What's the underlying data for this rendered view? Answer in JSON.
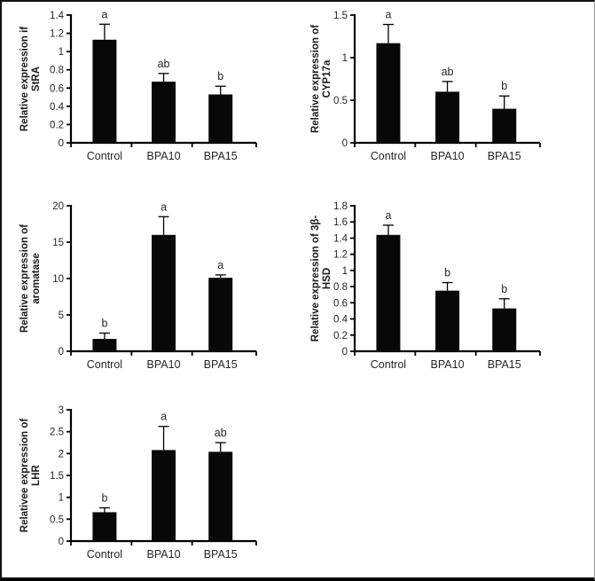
{
  "figure": {
    "background": "#ffffff",
    "border_color": "#000000",
    "text_color": "#262626",
    "bar_color": "#080808",
    "groups": [
      "Control",
      "BPA10",
      "BPA15"
    ]
  },
  "chart_data": [
    {
      "id": "stra",
      "type": "bar",
      "ylabel_lines": [
        "Relative expression if",
        "StRA"
      ],
      "categories": [
        "Control",
        "BPA10",
        "BPA15"
      ],
      "values": [
        1.13,
        0.67,
        0.53
      ],
      "errors_plus": [
        0.17,
        0.09,
        0.09
      ],
      "sig_labels": [
        "a",
        "ab",
        "b"
      ],
      "ylim": [
        0,
        1.4
      ],
      "yticks": [
        "0",
        "0.2",
        "0.4",
        "0.6",
        "0.8",
        "1",
        "1.2",
        "1.4"
      ],
      "legend": "none",
      "grid": "off"
    },
    {
      "id": "cyp17a",
      "type": "bar",
      "ylabel_lines": [
        "Relative expression of",
        "CYP17a"
      ],
      "categories": [
        "Control",
        "BPA10",
        "BPA15"
      ],
      "values": [
        1.17,
        0.6,
        0.4
      ],
      "errors_plus": [
        0.22,
        0.12,
        0.15
      ],
      "sig_labels": [
        "a",
        "ab",
        "b"
      ],
      "ylim": [
        0,
        1.5
      ],
      "yticks": [
        "0",
        "0.5",
        "1",
        "1.5"
      ],
      "legend": "none",
      "grid": "off"
    },
    {
      "id": "aromatase",
      "type": "bar",
      "ylabel_lines": [
        "Relative expression of",
        "aromatase"
      ],
      "categories": [
        "Control",
        "BPA10",
        "BPA15"
      ],
      "values": [
        1.7,
        16.0,
        10.1
      ],
      "errors_plus": [
        0.8,
        2.5,
        0.4
      ],
      "sig_labels": [
        "b",
        "a",
        "a"
      ],
      "ylim": [
        0,
        20
      ],
      "yticks": [
        "0",
        "5",
        "10",
        "15",
        "20"
      ],
      "legend": "none",
      "grid": "off"
    },
    {
      "id": "hsd3b",
      "type": "bar",
      "ylabel_lines": [
        "Relative expression of 3β-",
        "HSD"
      ],
      "categories": [
        "Control",
        "BPA10",
        "BPA15"
      ],
      "values": [
        1.44,
        0.75,
        0.53
      ],
      "errors_plus": [
        0.12,
        0.1,
        0.12
      ],
      "sig_labels": [
        "a",
        "b",
        "b"
      ],
      "ylim": [
        0,
        1.8
      ],
      "yticks": [
        "0",
        "0.2",
        "0.4",
        "0.6",
        "0.8",
        "1",
        "1.2",
        "1.4",
        "1.6",
        "1.8"
      ],
      "legend": "none",
      "grid": "off"
    },
    {
      "id": "lhr",
      "type": "bar",
      "ylabel_lines": [
        "Relativee expression of",
        "LHR"
      ],
      "categories": [
        "Control",
        "BPA10",
        "BPA15"
      ],
      "values": [
        0.66,
        2.08,
        2.04
      ],
      "errors_plus": [
        0.1,
        0.54,
        0.21
      ],
      "sig_labels": [
        "b",
        "a",
        "ab"
      ],
      "ylim": [
        0,
        3
      ],
      "yticks": [
        "0",
        "0.5",
        "1",
        "1.5",
        "2",
        "2.5",
        "3"
      ],
      "legend": "none",
      "grid": "off"
    }
  ]
}
